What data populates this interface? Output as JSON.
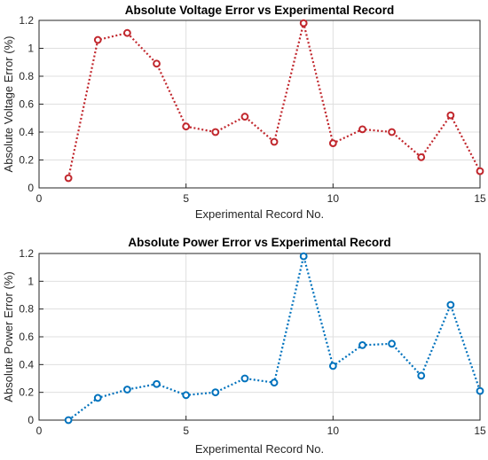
{
  "chart_data": [
    {
      "type": "line",
      "title": "Absolute Voltage Error vs Experimental Record",
      "xlabel": "Experimental Record No.",
      "ylabel": "Absolute Voltage Error (%)",
      "xlim": [
        0,
        15
      ],
      "ylim": [
        0,
        1.2
      ],
      "xticks": [
        0,
        5,
        10,
        15
      ],
      "yticks": [
        0,
        0.2,
        0.4,
        0.6,
        0.8,
        1,
        1.2
      ],
      "xtick_labels": [
        "0",
        "5",
        "10",
        "15"
      ],
      "ytick_labels": [
        "0",
        "0.2",
        "0.4",
        "0.6",
        "0.8",
        "1",
        "1.2"
      ],
      "grid": true,
      "series": [
        {
          "color": "#c1272d",
          "line_style": "dotted",
          "marker": "circle",
          "x": [
            1,
            2,
            3,
            4,
            5,
            6,
            7,
            8,
            9,
            10,
            11,
            12,
            13,
            14,
            15
          ],
          "values": [
            0.07,
            1.06,
            1.11,
            0.89,
            0.44,
            0.4,
            0.51,
            0.33,
            1.18,
            0.32,
            0.42,
            0.4,
            0.22,
            0.52,
            0.12
          ]
        }
      ]
    },
    {
      "type": "line",
      "title": "Absolute Power Error vs Experimental Record",
      "xlabel": "Experimental Record No.",
      "ylabel": "Absolute Power Error (%)",
      "xlim": [
        0,
        15
      ],
      "ylim": [
        0,
        1.2
      ],
      "xticks": [
        0,
        5,
        10,
        15
      ],
      "yticks": [
        0,
        0.2,
        0.4,
        0.6,
        0.8,
        1,
        1.2
      ],
      "xtick_labels": [
        "0",
        "5",
        "10",
        "15"
      ],
      "ytick_labels": [
        "0",
        "0.2",
        "0.4",
        "0.6",
        "0.8",
        "1",
        "1.2"
      ],
      "grid": true,
      "series": [
        {
          "color": "#0072bd",
          "line_style": "dotted",
          "marker": "circle",
          "x": [
            1,
            2,
            3,
            4,
            5,
            6,
            7,
            8,
            9,
            10,
            11,
            12,
            13,
            14,
            15
          ],
          "values": [
            0.0,
            0.16,
            0.22,
            0.26,
            0.18,
            0.2,
            0.3,
            0.27,
            1.18,
            0.39,
            0.54,
            0.55,
            0.32,
            0.83,
            0.21
          ]
        }
      ]
    }
  ]
}
